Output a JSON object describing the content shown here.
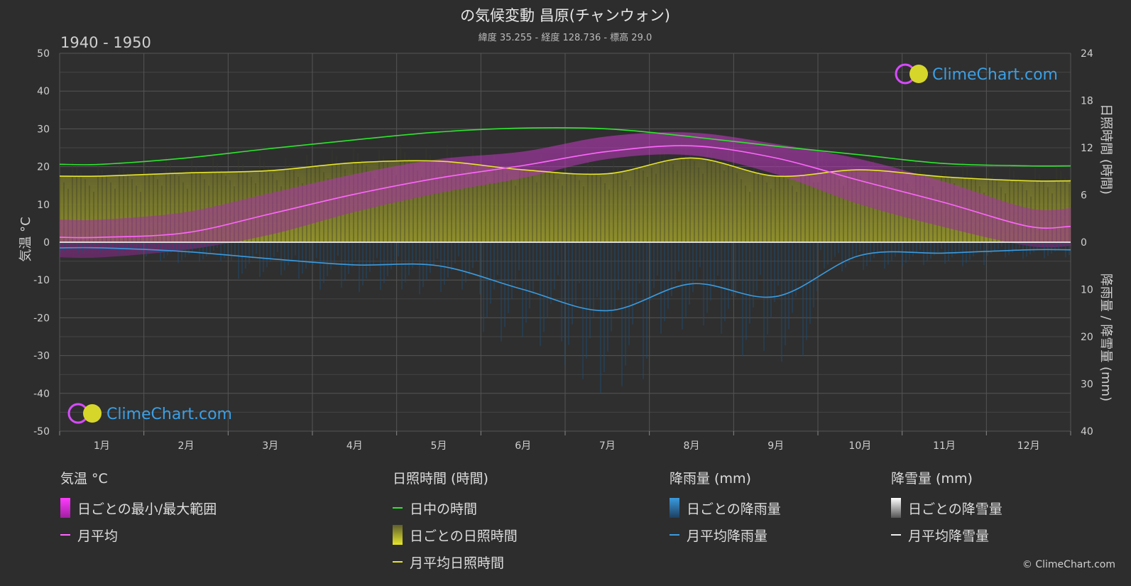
{
  "header": {
    "title": "の気候変動 昌原(チャンウォン)",
    "subtitle": "緯度 35.255 - 経度 128.736 - 標高 29.0",
    "period": "1940 - 1950"
  },
  "chart_data": {
    "type": "line",
    "categories": [
      "1月",
      "2月",
      "3月",
      "4月",
      "5月",
      "6月",
      "7月",
      "8月",
      "9月",
      "10月",
      "11月",
      "12月"
    ],
    "y_left": {
      "label": "気温 °C",
      "ylim": [
        -50,
        50
      ],
      "ticks": [
        "50",
        "40",
        "30",
        "20",
        "10",
        "0",
        "-10",
        "-20",
        "-30",
        "-40",
        "-50"
      ]
    },
    "y_right_top": {
      "label": "日照時間 (時間)",
      "ylim": [
        0,
        24
      ],
      "ticks": [
        "24",
        "18",
        "12",
        "6",
        "0"
      ]
    },
    "y_right_bottom": {
      "label": "降雨量 / 降雪量 (mm)",
      "ylim": [
        0,
        40
      ],
      "ticks": [
        "0",
        "10",
        "20",
        "30",
        "40"
      ]
    },
    "grid": true,
    "series": [
      {
        "name": "日中の時間",
        "axis": "sunshine_hours",
        "color": "#2ee52e",
        "values": [
          9.9,
          10.7,
          11.9,
          13.0,
          14.0,
          14.5,
          14.4,
          13.4,
          12.2,
          11.1,
          10.0,
          9.7
        ]
      },
      {
        "name": "月平均日照時間",
        "axis": "sunshine_hours",
        "color": "#e6e62a",
        "values": [
          8.4,
          8.8,
          9.1,
          10.1,
          10.3,
          9.2,
          8.7,
          10.7,
          8.4,
          9.2,
          8.3,
          7.8
        ]
      },
      {
        "name": "月平均",
        "axis": "temperature_c",
        "color": "#ff66ff",
        "values": [
          1.3,
          2.5,
          7.5,
          12.7,
          17.0,
          20.3,
          24.0,
          25.5,
          22.3,
          16.3,
          10.5,
          4.2
        ]
      },
      {
        "name": "月平均降雨量",
        "axis": "rain_mm",
        "color": "#3a9be0",
        "values": [
          1.2,
          2.0,
          3.5,
          4.8,
          5.0,
          10.0,
          14.5,
          8.8,
          11.5,
          2.8,
          2.3,
          1.6
        ]
      },
      {
        "name": "月平均降雪量",
        "axis": "snow_mm",
        "color": "#eeeeee",
        "values": [
          0,
          0,
          0,
          0,
          0,
          0,
          0,
          0,
          0,
          0,
          0,
          0
        ]
      }
    ],
    "daily_bands": {
      "temperature_range_c": {
        "min": [
          -4,
          -2,
          2,
          8,
          13,
          17,
          22,
          23,
          18,
          10,
          4,
          -1
        ],
        "max": [
          6,
          8,
          13,
          18,
          22,
          24,
          28,
          29,
          26,
          22,
          16,
          9
        ]
      },
      "sunshine_hours_daily": [
        8.4,
        8.8,
        9.1,
        10.1,
        10.3,
        9.2,
        8.7,
        10.7,
        8.4,
        9.2,
        8.3,
        7.8
      ],
      "rain_mm_daily": [
        1.2,
        2.0,
        3.5,
        4.8,
        5.0,
        10.0,
        14.5,
        8.8,
        11.5,
        2.8,
        2.3,
        1.6
      ]
    }
  },
  "watermark": {
    "text": "ClimeChart.com"
  },
  "legend": {
    "temperature": {
      "title": "気温 °C",
      "items": [
        "日ごとの最小/最大範囲",
        "月平均"
      ]
    },
    "sunshine": {
      "title": "日照時間 (時間)",
      "items": [
        "日中の時間",
        "日ごとの日照時間",
        "月平均日照時間"
      ]
    },
    "rain": {
      "title": "降雨量 (mm)",
      "items": [
        "日ごとの降雨量",
        "月平均降雨量"
      ]
    },
    "snow": {
      "title": "降雪量 (mm)",
      "items": [
        "日ごとの降雪量",
        "月平均降雪量"
      ]
    }
  },
  "copyright": "© ClimeChart.com",
  "colors": {
    "background": "#2d2d2d",
    "grid": "#555555",
    "daylight": "#2ee52e",
    "sunshine": "#e6e62a",
    "temp": "#ff66ff",
    "rain": "#3a9be0",
    "snow": "#eeeeee"
  }
}
